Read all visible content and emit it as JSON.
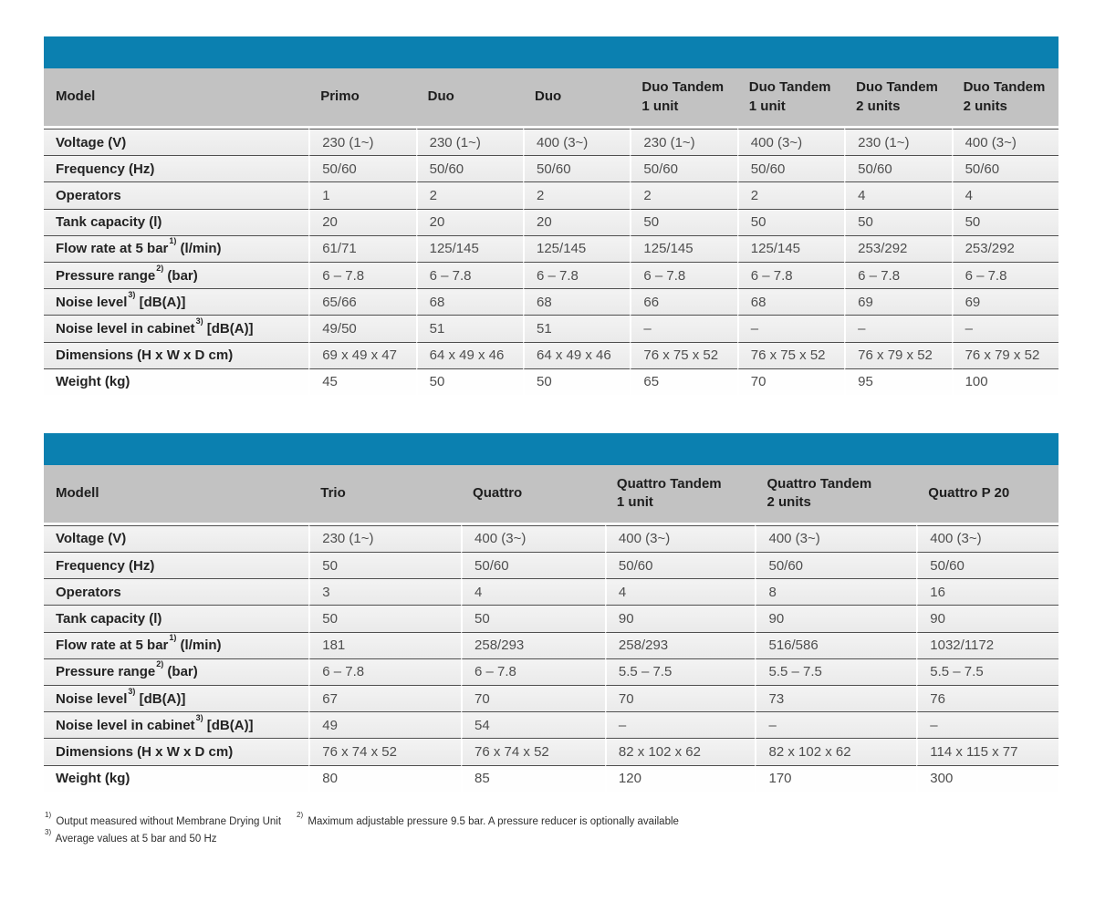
{
  "colors": {
    "accent_blue": "#0b80b0",
    "header_gray": "#c2c2c2",
    "row_gray": "#efefef",
    "row_last": "#fefefe",
    "border_dark": "#4f4f4f"
  },
  "tables": [
    {
      "name": "duo-series-specs",
      "columns": [
        {
          "name": "Model",
          "sub": ""
        },
        {
          "name": "Primo",
          "sub": ""
        },
        {
          "name": "Duo",
          "sub": ""
        },
        {
          "name": "Duo",
          "sub": ""
        },
        {
          "name": "Duo Tandem",
          "sub": "1 unit"
        },
        {
          "name": "Duo Tandem",
          "sub": "1 unit"
        },
        {
          "name": "Duo Tandem",
          "sub": "2 units"
        },
        {
          "name": "Duo Tandem",
          "sub": "2 units"
        }
      ],
      "rows": [
        {
          "label": "Voltage (V)",
          "values": [
            "230 (1~)",
            "230 (1~)",
            "400 (3~)",
            "230 (1~)",
            "400 (3~)",
            "230 (1~)",
            "400 (3~)"
          ]
        },
        {
          "label": "Frequency (Hz)",
          "values": [
            "50/60",
            "50/60",
            "50/60",
            "50/60",
            "50/60",
            "50/60",
            "50/60"
          ]
        },
        {
          "label": "Operators",
          "values": [
            "1",
            "2",
            "2",
            "2",
            "2",
            "4",
            "4"
          ]
        },
        {
          "label": "Tank capacity (l)",
          "values": [
            "20",
            "20",
            "20",
            "50",
            "50",
            "50",
            "50"
          ]
        },
        {
          "label": "Flow rate at 5 bar",
          "sup": "1)",
          "label_after": " (l/min)",
          "values": [
            "61/71",
            "125/145",
            "125/145",
            "125/145",
            "125/145",
            "253/292",
            "253/292"
          ]
        },
        {
          "label": "Pressure range",
          "sup": "2)",
          "label_after": " (bar)",
          "values": [
            "6 – 7.8",
            "6 – 7.8",
            "6 – 7.8",
            "6 – 7.8",
            "6 – 7.8",
            "6 – 7.8",
            "6 – 7.8"
          ]
        },
        {
          "label": "Noise level",
          "sup": "3)",
          "label_after": " [dB(A)]",
          "values": [
            "65/66",
            "68",
            "68",
            "66",
            "68",
            "69",
            "69"
          ]
        },
        {
          "label": "Noise level in cabinet",
          "sup": "3)",
          "label_after": " [dB(A)]",
          "values": [
            "49/50",
            "51",
            "51",
            "–",
            "–",
            "–",
            "–"
          ]
        },
        {
          "label": "Dimensions (H x W x D cm)",
          "values": [
            "69 x 49 x 47",
            "64 x 49 x 46",
            "64 x 49 x 46",
            "76 x 75 x 52",
            "76 x 75 x 52",
            "76 x 79 x 52",
            "76 x 79 x 52"
          ]
        },
        {
          "label": "Weight (kg)",
          "values": [
            "45",
            "50",
            "50",
            "65",
            "70",
            "95",
            "100"
          ]
        }
      ]
    },
    {
      "name": "quattro-series-specs",
      "columns": [
        {
          "name": "Modell",
          "sub": ""
        },
        {
          "name": "Trio",
          "sub": ""
        },
        {
          "name": "Quattro",
          "sub": ""
        },
        {
          "name": "Quattro Tandem",
          "sub": "1 unit"
        },
        {
          "name": "Quattro Tandem",
          "sub": "2 units"
        },
        {
          "name": "Quattro P 20",
          "sub": ""
        }
      ],
      "rows": [
        {
          "label": "Voltage (V)",
          "values": [
            "230 (1~)",
            "400 (3~)",
            "400 (3~)",
            "400 (3~)",
            "400 (3~)"
          ]
        },
        {
          "label": "Frequency (Hz)",
          "values": [
            "50",
            "50/60",
            "50/60",
            "50/60",
            "50/60"
          ]
        },
        {
          "label": "Operators",
          "values": [
            "3",
            "4",
            "4",
            "8",
            "16"
          ]
        },
        {
          "label": "Tank capacity (l)",
          "values": [
            "50",
            "50",
            "90",
            "90",
            "90"
          ]
        },
        {
          "label": "Flow rate at 5 bar",
          "sup": "1)",
          "label_after": " (l/min)",
          "values": [
            "181",
            "258/293",
            "258/293",
            "516/586",
            "1032/1172"
          ]
        },
        {
          "label": "Pressure range",
          "sup": "2)",
          "label_after": " (bar)",
          "values": [
            "6 – 7.8",
            "6 – 7.8",
            "5.5 – 7.5",
            "5.5 – 7.5",
            "5.5 – 7.5"
          ]
        },
        {
          "label": "Noise level",
          "sup": "3)",
          "label_after": " [dB(A)]",
          "values": [
            "67",
            "70",
            "70",
            "73",
            "76"
          ]
        },
        {
          "label": "Noise level in cabinet",
          "sup": "3)",
          "label_after": " [dB(A)]",
          "values": [
            "49",
            "54",
            "–",
            "–",
            "–"
          ]
        },
        {
          "label": "Dimensions (H x W x D cm)",
          "values": [
            "76 x 74 x 52",
            "76 x 74 x 52",
            "82 x 102 x 62",
            "82 x 102 x 62",
            "114 x 115 x 77"
          ]
        },
        {
          "label": "Weight (kg)",
          "values": [
            "80",
            "85",
            "120",
            "170",
            "300"
          ]
        }
      ]
    }
  ],
  "footnotes": [
    {
      "mark": "1)",
      "text": "Output measured without Membrane Drying Unit"
    },
    {
      "mark": "2)",
      "text": "Maximum adjustable pressure 9.5 bar. A pressure reducer is optionally available"
    },
    {
      "mark": "3)",
      "text": "Average values at 5 bar and 50 Hz"
    }
  ],
  "footnote_lines": [
    [
      0,
      1
    ],
    [
      2
    ]
  ]
}
